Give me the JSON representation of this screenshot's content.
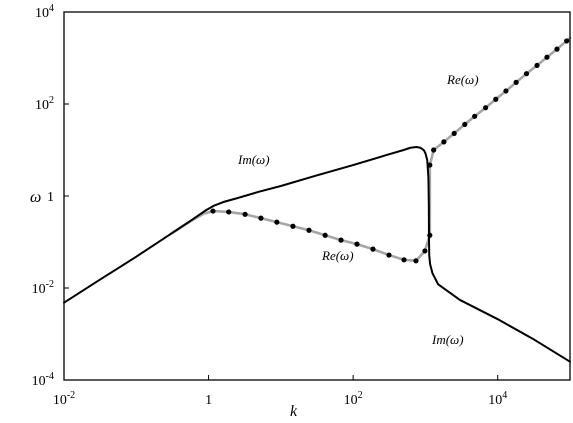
{
  "chart_data": {
    "type": "line",
    "title": "",
    "xlabel": "k",
    "ylabel": "ω",
    "xscale": "log",
    "yscale": "log",
    "xlim": [
      0.01,
      100000
    ],
    "ylim": [
      0.0001,
      10000
    ],
    "grid": false,
    "x_ticks": [
      {
        "value": 0.01,
        "base": "10",
        "exp": "-2"
      },
      {
        "value": 1,
        "base": "1",
        "exp": ""
      },
      {
        "value": 100,
        "base": "10",
        "exp": "2"
      },
      {
        "value": 10000,
        "base": "10",
        "exp": "4"
      }
    ],
    "y_ticks": [
      {
        "value": 0.0001,
        "base": "10",
        "exp": "-4"
      },
      {
        "value": 0.01,
        "base": "10",
        "exp": "-2"
      },
      {
        "value": 1,
        "base": "1",
        "exp": ""
      },
      {
        "value": 100,
        "base": "10",
        "exp": "2"
      },
      {
        "value": 10000,
        "base": "10",
        "exp": "4"
      }
    ],
    "series": [
      {
        "name": "Im(ω)",
        "line_style": "solid",
        "color": "#000000",
        "points": [
          [
            0.01,
            0.0048
          ],
          [
            0.03,
            0.0145
          ],
          [
            0.1,
            0.048
          ],
          [
            0.3,
            0.15
          ],
          [
            0.6,
            0.31
          ],
          [
            0.9,
            0.48
          ],
          [
            1.2,
            0.62
          ],
          [
            1.6,
            0.74
          ],
          [
            2.5,
            0.9
          ],
          [
            5,
            1.24
          ],
          [
            10,
            1.65
          ],
          [
            30,
            2.75
          ],
          [
            100,
            4.7
          ],
          [
            300,
            7.9
          ],
          [
            500,
            10
          ],
          [
            620,
            11.2
          ],
          [
            750,
            11.6
          ],
          [
            850,
            11.2
          ],
          [
            950,
            9.9
          ],
          [
            1000,
            8.5
          ],
          [
            1060,
            6
          ],
          [
            1100,
            2.5
          ],
          [
            1115,
            0.6
          ],
          [
            1120,
            0.12
          ],
          [
            1130,
            0.05
          ],
          [
            1160,
            0.033
          ],
          [
            1250,
            0.021
          ],
          [
            1500,
            0.012
          ],
          [
            3000,
            0.0055
          ],
          [
            10000,
            0.0021
          ],
          [
            30000,
            0.0008
          ],
          [
            100000,
            0.00025
          ]
        ]
      },
      {
        "name": "Re(ω)",
        "line_style": "solid",
        "color": "#a6a6a6",
        "marker": "dot",
        "marker_color": "#000000",
        "points": [
          [
            0.3,
            0.15
          ],
          [
            0.6,
            0.3
          ],
          [
            0.85,
            0.41
          ],
          [
            1.15,
            0.47
          ],
          [
            1.9,
            0.45
          ],
          [
            3.2,
            0.4
          ],
          [
            5.3,
            0.33
          ],
          [
            8.8,
            0.27
          ],
          [
            14.7,
            0.22
          ],
          [
            24.5,
            0.18
          ],
          [
            41,
            0.14
          ],
          [
            68,
            0.11
          ],
          [
            113,
            0.09
          ],
          [
            188,
            0.07
          ],
          [
            313,
            0.052
          ],
          [
            505,
            0.041
          ],
          [
            740,
            0.039
          ],
          [
            984,
            0.064
          ],
          [
            1150,
            0.14
          ],
          [
            1150,
            4.7
          ],
          [
            1300,
            10
          ],
          [
            1800,
            15
          ],
          [
            2500,
            23
          ],
          [
            3500,
            36
          ],
          [
            4800,
            54
          ],
          [
            6800,
            83
          ],
          [
            9400,
            127
          ],
          [
            13000,
            192
          ],
          [
            18000,
            295
          ],
          [
            25000,
            456
          ],
          [
            35000,
            690
          ],
          [
            48000,
            1040
          ],
          [
            66000,
            1560
          ],
          [
            90000,
            2350
          ],
          [
            100000,
            2700
          ]
        ],
        "marker_points": [
          [
            1.15,
            0.47
          ],
          [
            1.9,
            0.45
          ],
          [
            3.2,
            0.4
          ],
          [
            5.3,
            0.33
          ],
          [
            8.8,
            0.27
          ],
          [
            14.7,
            0.22
          ],
          [
            24.5,
            0.18
          ],
          [
            41,
            0.14
          ],
          [
            68,
            0.11
          ],
          [
            113,
            0.09
          ],
          [
            188,
            0.07
          ],
          [
            313,
            0.052
          ],
          [
            505,
            0.041
          ],
          [
            740,
            0.039
          ],
          [
            984,
            0.064
          ],
          [
            1150,
            0.14
          ],
          [
            1150,
            4.7
          ],
          [
            1300,
            10
          ],
          [
            1800,
            15
          ],
          [
            2500,
            23
          ],
          [
            3500,
            36
          ],
          [
            4800,
            54
          ],
          [
            6800,
            83
          ],
          [
            9400,
            127
          ],
          [
            13000,
            192
          ],
          [
            18000,
            295
          ],
          [
            25000,
            456
          ],
          [
            35000,
            690
          ],
          [
            48000,
            1040
          ],
          [
            66000,
            1560
          ],
          [
            90000,
            2350
          ]
        ]
      }
    ]
  }
}
